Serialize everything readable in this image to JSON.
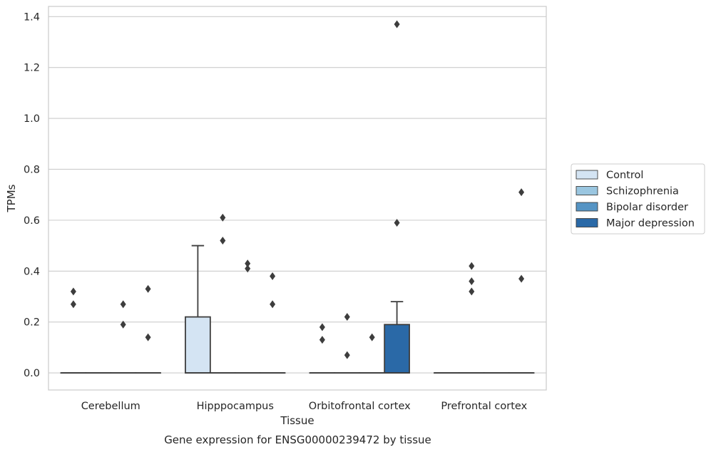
{
  "chart_data": {
    "type": "box",
    "title": "",
    "caption": "Gene expression for ENSG00000239472 by tissue",
    "xlabel": "Tissue",
    "ylabel": "TPMs",
    "ylim": [
      -0.067,
      1.44
    ],
    "yticks": [
      0.0,
      0.2,
      0.4,
      0.6,
      0.8,
      1.0,
      1.2,
      1.4
    ],
    "ytick_labels": [
      "0.0",
      "0.2",
      "0.4",
      "0.6",
      "0.8",
      "1.0",
      "1.2",
      "1.4"
    ],
    "grid": true,
    "legend_position": "right",
    "categories": [
      "Cerebellum",
      "Hipppocampus",
      "Orbitofrontal cortex",
      "Prefrontal cortex"
    ],
    "series": [
      {
        "name": "Control",
        "color": "#d4e4f3",
        "boxes": [
          {
            "q1": 0,
            "median": 0,
            "q3": 0,
            "whisker_low": 0,
            "whisker_high": 0,
            "outliers": [
              0.32,
              0.27
            ]
          },
          {
            "q1": 0,
            "median": 0,
            "q3": 0.22,
            "whisker_low": 0,
            "whisker_high": 0.5,
            "outliers": []
          },
          {
            "q1": 0,
            "median": 0,
            "q3": 0,
            "whisker_low": 0,
            "whisker_high": 0,
            "outliers": [
              0.18,
              0.13
            ]
          },
          {
            "q1": 0,
            "median": 0,
            "q3": 0,
            "whisker_low": 0,
            "whisker_high": 0,
            "outliers": []
          }
        ]
      },
      {
        "name": "Schizophrenia",
        "color": "#9ac6e0",
        "boxes": [
          {
            "q1": 0,
            "median": 0,
            "q3": 0,
            "whisker_low": 0,
            "whisker_high": 0,
            "outliers": []
          },
          {
            "q1": 0,
            "median": 0,
            "q3": 0,
            "whisker_low": 0,
            "whisker_high": 0,
            "outliers": [
              0.61,
              0.52
            ]
          },
          {
            "q1": 0,
            "median": 0,
            "q3": 0,
            "whisker_low": 0,
            "whisker_high": 0,
            "outliers": [
              0.22,
              0.07
            ]
          },
          {
            "q1": 0,
            "median": 0,
            "q3": 0,
            "whisker_low": 0,
            "whisker_high": 0,
            "outliers": [
              0.42,
              0.36,
              0.32
            ]
          }
        ]
      },
      {
        "name": "Bipolar disorder",
        "color": "#5594c4",
        "boxes": [
          {
            "q1": 0,
            "median": 0,
            "q3": 0,
            "whisker_low": 0,
            "whisker_high": 0,
            "outliers": [
              0.27,
              0.19
            ]
          },
          {
            "q1": 0,
            "median": 0,
            "q3": 0,
            "whisker_low": 0,
            "whisker_high": 0,
            "outliers": [
              0.43,
              0.41
            ]
          },
          {
            "q1": 0,
            "median": 0,
            "q3": 0,
            "whisker_low": 0,
            "whisker_high": 0,
            "outliers": [
              0.14
            ]
          },
          {
            "q1": 0,
            "median": 0,
            "q3": 0,
            "whisker_low": 0,
            "whisker_high": 0,
            "outliers": []
          }
        ]
      },
      {
        "name": "Major depression",
        "color": "#2a69a7",
        "boxes": [
          {
            "q1": 0,
            "median": 0,
            "q3": 0,
            "whisker_low": 0,
            "whisker_high": 0,
            "outliers": [
              0.33,
              0.14
            ]
          },
          {
            "q1": 0,
            "median": 0,
            "q3": 0,
            "whisker_low": 0,
            "whisker_high": 0,
            "outliers": [
              0.38,
              0.27
            ]
          },
          {
            "q1": 0,
            "median": 0,
            "q3": 0.19,
            "whisker_low": 0,
            "whisker_high": 0.28,
            "outliers": [
              1.37,
              0.59
            ]
          },
          {
            "q1": 0,
            "median": 0,
            "q3": 0,
            "whisker_low": 0,
            "whisker_high": 0,
            "outliers": [
              0.71,
              0.37
            ]
          }
        ]
      }
    ]
  }
}
